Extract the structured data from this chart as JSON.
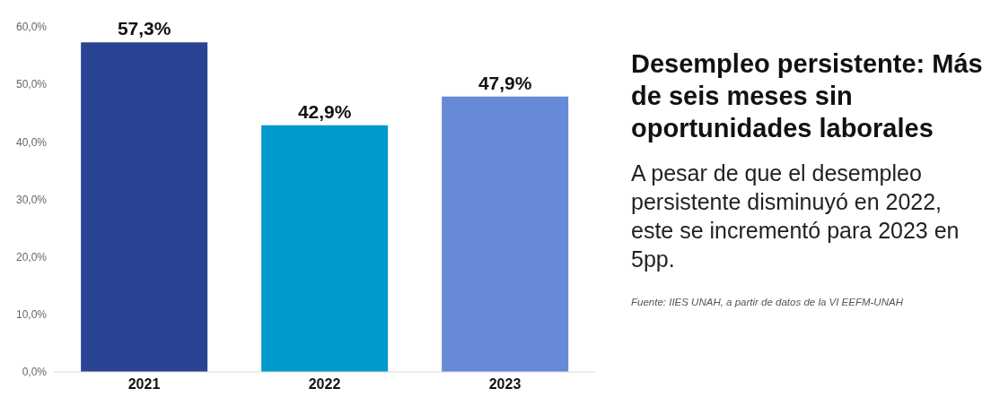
{
  "chart_data": {
    "type": "bar",
    "title": "Desempleo persistente: Más de seis meses sin oportunidades laborales",
    "subtitle": "A pesar de que el desempleo persistente disminuyó en 2022, este se incrementó para 2023 en 5pp.",
    "categories": [
      "2021",
      "2022",
      "2023"
    ],
    "values": [
      57.3,
      42.9,
      47.9
    ],
    "colors": [
      "#2a4494",
      "#009acd",
      "#6689d8"
    ],
    "value_labels": [
      "57,3%",
      "42,9%",
      "47,9%"
    ],
    "ylim": [
      0,
      60
    ],
    "yticks": [
      {
        "value": 0,
        "label": "0,0%"
      },
      {
        "value": 10,
        "label": "10,0%"
      },
      {
        "value": 20,
        "label": "20,0%"
      },
      {
        "value": 30,
        "label": "30,0%"
      },
      {
        "value": 40,
        "label": "40,0%"
      },
      {
        "value": 50,
        "label": "50,0%"
      },
      {
        "value": 60,
        "label": "60,0%"
      }
    ],
    "grid": false,
    "annotations": [
      "Fuente: IIES UNAH, a partir de datos de la VI EEFM-UNAH"
    ]
  }
}
